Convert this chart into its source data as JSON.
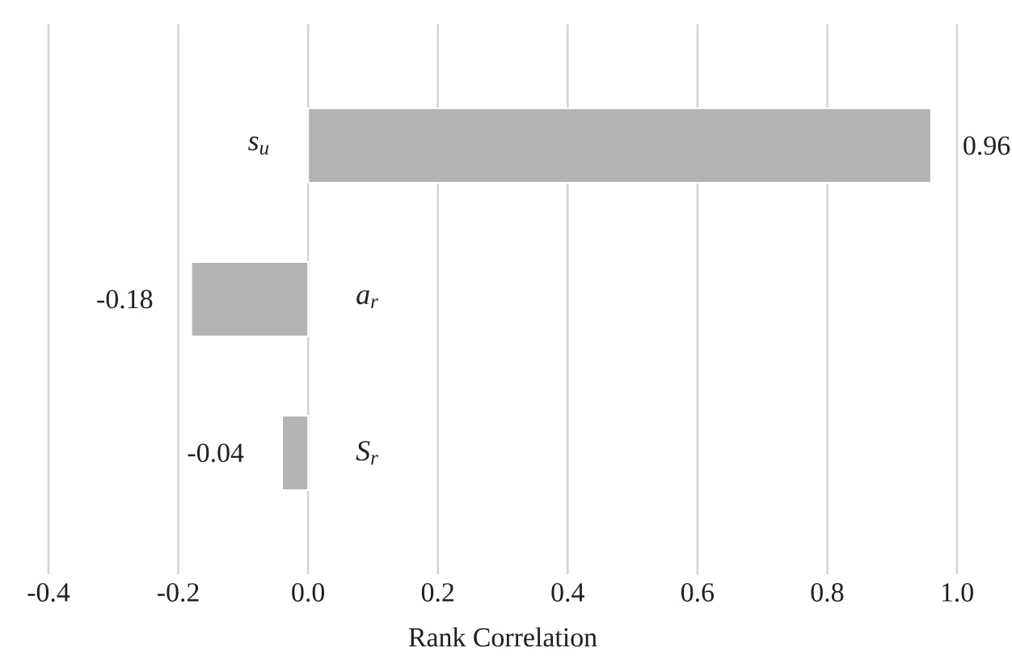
{
  "chart_data": {
    "type": "bar",
    "orientation": "horizontal",
    "xlabel": "Rank Correlation",
    "categories": [
      "*s$_{u}$*",
      "*a$_{r}$*",
      "*S$_{r}$*"
    ],
    "values": [
      0.96,
      -0.18,
      -0.04
    ],
    "color": "#b2b4b5",
    "xlim": [
      -0.4,
      1.0
    ],
    "xticks": [
      -0.4,
      -0.2,
      {
        "value": 0,
        "label": "0.0"
      },
      0.2,
      0.4,
      0.6,
      0.8,
      {
        "value": 1,
        "label": "1.0"
      }
    ],
    "grid": "x",
    "data_labels": true
  }
}
